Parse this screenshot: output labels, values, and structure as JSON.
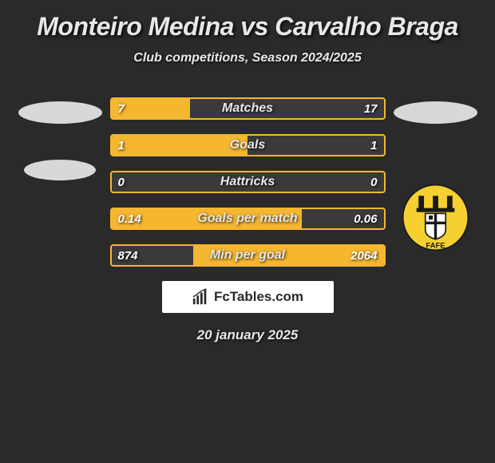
{
  "header": {
    "title": "Monteiro Medina vs Carvalho Braga",
    "subtitle": "Club competitions, Season 2024/2025"
  },
  "stats": [
    {
      "label": "Matches",
      "left_val": "7",
      "right_val": "17",
      "left_fill_pct": 29,
      "right_fill_pct": 0
    },
    {
      "label": "Goals",
      "left_val": "1",
      "right_val": "1",
      "left_fill_pct": 50,
      "right_fill_pct": 0
    },
    {
      "label": "Hattricks",
      "left_val": "0",
      "right_val": "0",
      "left_fill_pct": 0,
      "right_fill_pct": 0
    },
    {
      "label": "Goals per match",
      "left_val": "0.14",
      "right_val": "0.06",
      "left_fill_pct": 70,
      "right_fill_pct": 0
    },
    {
      "label": "Min per goal",
      "left_val": "874",
      "right_val": "2064",
      "left_fill_pct": 0,
      "right_fill_pct": 70
    }
  ],
  "colors": {
    "background": "#2a2a2a",
    "bar_border": "#f5b730",
    "bar_fill": "#f5b730",
    "bar_bg": "#3a3a3a",
    "text": "#e8e8e8",
    "badge_oval": "#d8d8d8",
    "site_bg": "#ffffff",
    "site_text": "#2a2a2a",
    "crest_yellow": "#f5d030",
    "crest_black": "#1a1a1a",
    "crest_white": "#ffffff"
  },
  "site": {
    "name": "FcTables.com"
  },
  "footer": {
    "date": "20 january 2025"
  }
}
